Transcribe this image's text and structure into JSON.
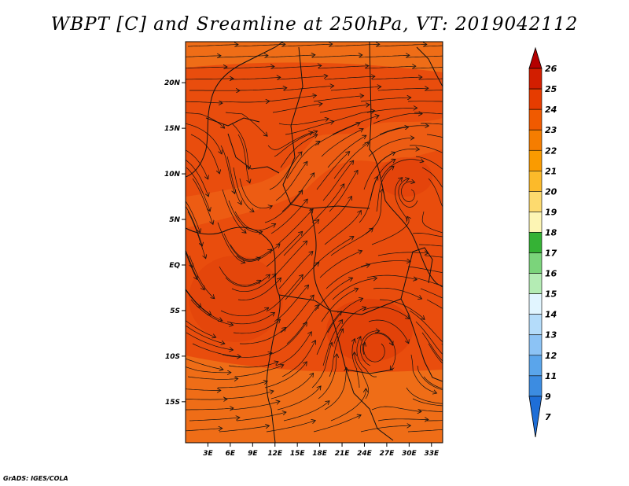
{
  "title": "WBPT [C] and Sreamline at 250hPa, VT: 2019042112",
  "credit": "GrADS: IGES/COLA",
  "map": {
    "lat_labels": [
      "20N",
      "15N",
      "10N",
      "5N",
      "EQ",
      "5S",
      "10S",
      "15S"
    ],
    "lon_labels": [
      "3E",
      "6E",
      "9E",
      "12E",
      "15E",
      "18E",
      "21E",
      "24E",
      "27E",
      "30E",
      "33E"
    ],
    "lat_values": [
      20,
      15,
      10,
      5,
      0,
      -5,
      -10,
      -15
    ],
    "lon_values": [
      3,
      6,
      9,
      12,
      15,
      18,
      21,
      24,
      27,
      30,
      33
    ],
    "lon_range": [
      0,
      34.5
    ],
    "lat_range": [
      -19.5,
      24.5
    ]
  },
  "colorbar": {
    "labels": [
      "26",
      "25",
      "24",
      "23",
      "22",
      "21",
      "20",
      "19",
      "18",
      "17",
      "16",
      "15",
      "14",
      "13",
      "12",
      "11",
      "9",
      "7"
    ],
    "colors": [
      "#b40000",
      "#d21e00",
      "#e63c00",
      "#f05a00",
      "#f57d00",
      "#fa9b00",
      "#fcba2a",
      "#fdda6e",
      "#fdf5b4",
      "#35b235",
      "#7bd47b",
      "#b4ecb4",
      "#e1f5ff",
      "#b4dcfa",
      "#8cc3f5",
      "#5aa5eb",
      "#3c8ce1",
      "#1e6ed7"
    ]
  },
  "colors": {
    "field_main": "#e94d0d",
    "field_warm": "#ef6d17",
    "field_cool": "#dd3a08"
  }
}
